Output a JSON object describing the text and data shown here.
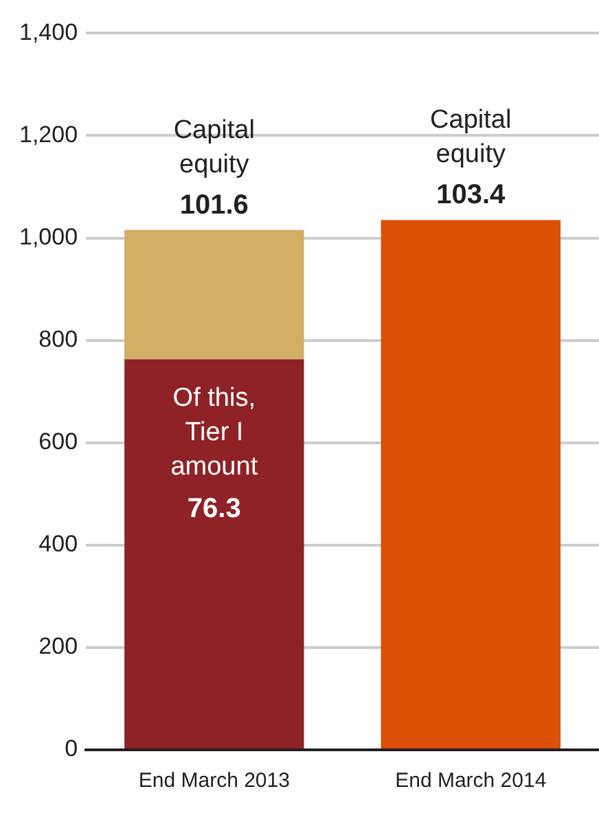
{
  "chart_data": {
    "type": "bar",
    "stacked": true,
    "categories": [
      "End March 2013",
      "End March 2014"
    ],
    "series": [
      {
        "colors": [
          "#8e2226",
          "#dc4f06"
        ],
        "values": [
          763,
          1035
        ]
      },
      {
        "color": "#d3ae65",
        "values": [
          253,
          null
        ]
      }
    ],
    "ylim": [
      0,
      1400
    ],
    "yticks": [
      0,
      {
        "value": 200,
        "label": "200"
      },
      {
        "value": 400,
        "label": "400"
      },
      {
        "value": 600,
        "label": "600"
      },
      {
        "value": 800,
        "label": "800"
      },
      {
        "value": 1000,
        "label": "1,000"
      },
      {
        "value": 1200,
        "label": "1,200"
      },
      {
        "value": 1400,
        "label": "1,400"
      }
    ],
    "grid": "y",
    "legend": false,
    "annotations": [
      "Capital equity",
      {
        "text": "101.6",
        "x": "End March 2013",
        "y": 1016
      },
      "Capital equity",
      {
        "text": "103.4",
        "x": "End March 2014",
        "y": 1035
      },
      "Of this, Tier I amount",
      "76.3"
    ]
  }
}
